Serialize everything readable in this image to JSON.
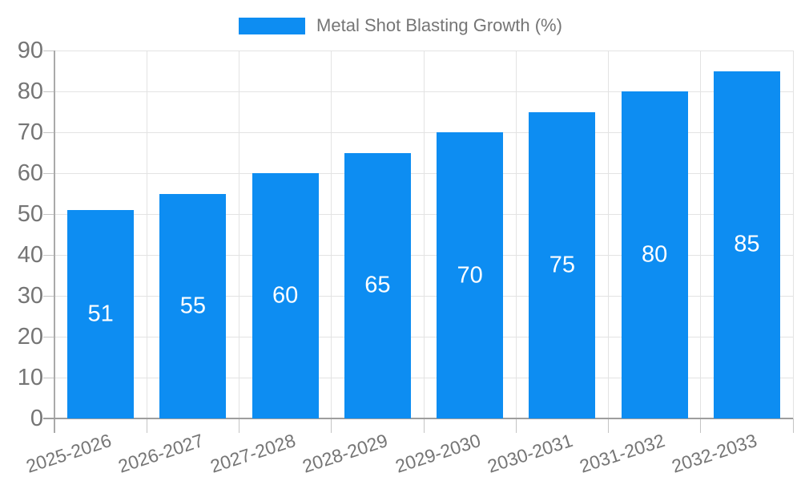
{
  "chart_data": {
    "type": "bar",
    "legend_label": "Metal Shot Blasting Growth (%)",
    "legend_position": "top-center",
    "categories": [
      "2025-2026",
      "2026-2027",
      "2027-2028",
      "2028-2029",
      "2029-2030",
      "2030-2031",
      "2031-2032",
      "2032-2033"
    ],
    "values": [
      51,
      55,
      60,
      65,
      70,
      75,
      80,
      85
    ],
    "value_labels_shown": true,
    "xlabel": "",
    "ylabel": "",
    "ylim": [
      0,
      90
    ],
    "yticks": [
      0,
      10,
      20,
      30,
      40,
      50,
      60,
      70,
      80,
      90
    ],
    "grid": true,
    "colors": {
      "bar": "#0d8df2",
      "value_label": "#ffffff",
      "axis_text": "#757575",
      "gridline": "#e3e3e3",
      "axis_line": "#a5a5a5",
      "background": "#ffffff"
    }
  }
}
